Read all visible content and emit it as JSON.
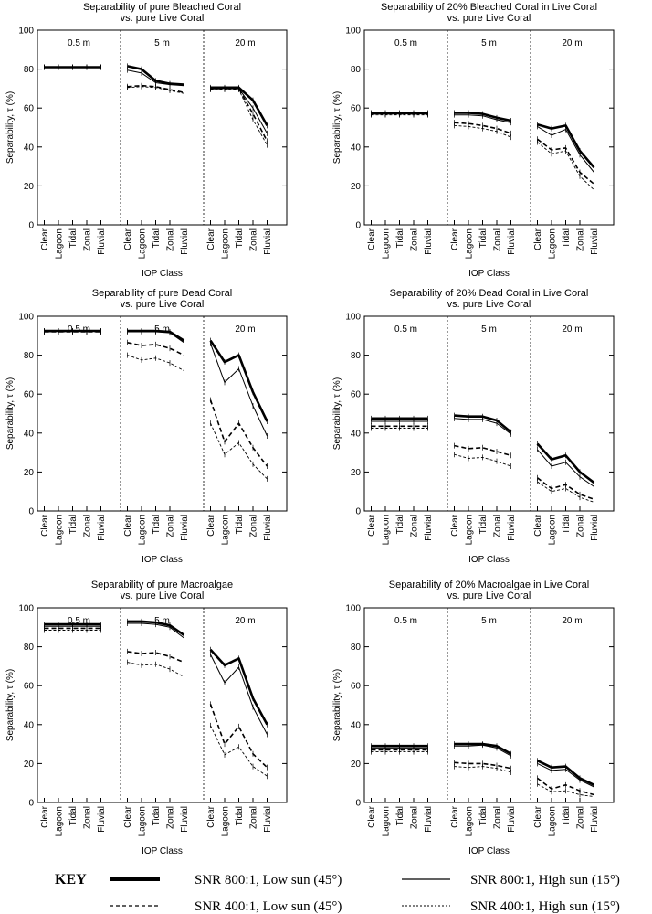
{
  "x_label": "IOP Class",
  "y_label": "Separability, τ (%)",
  "categories": [
    "Clear",
    "Lagoon",
    "Tidal",
    "Zonal",
    "Fluvial"
  ],
  "segments": [
    "0.5 m",
    "5 m",
    "20 m"
  ],
  "y_ticks": [
    "0",
    "20",
    "40",
    "60",
    "80",
    "100"
  ],
  "ylim": [
    0,
    100
  ],
  "key": {
    "title": "KEY",
    "entries": [
      {
        "id": "s1",
        "label": "SNR 800:1, Low sun (45°)"
      },
      {
        "id": "s2",
        "label": "SNR 800:1, High sun (15°)"
      },
      {
        "id": "s3",
        "label": "SNR 400:1, Low sun (45°)"
      },
      {
        "id": "s4",
        "label": "SNR 400:1, High sun (15°)"
      }
    ]
  },
  "chart_data": [
    {
      "type": "line",
      "title": [
        "Separability of pure Bleached Coral",
        "vs. pure Live Coral"
      ],
      "xlabel": "IOP Class",
      "ylabel": "Separability, τ (%)",
      "ylim": [
        0,
        100
      ],
      "segments": [
        {
          "name": "0.5 m",
          "series": [
            [
              81,
              81,
              81,
              81,
              81
            ],
            [
              81,
              81,
              81,
              81,
              81
            ],
            [
              81,
              81,
              81,
              81,
              81
            ],
            [
              81,
              81,
              81,
              81,
              81
            ]
          ]
        },
        {
          "name": "5 m",
          "series": [
            [
              81.5,
              80,
              74,
              72.5,
              72
            ],
            [
              79.5,
              78,
              73,
              72,
              71.5
            ],
            [
              71,
              71.5,
              71,
              69.5,
              68
            ],
            [
              70.5,
              71,
              70.5,
              69,
              67.5
            ]
          ]
        },
        {
          "name": "20 m",
          "series": [
            [
              70.5,
              70.5,
              70.5,
              64,
              51
            ],
            [
              70,
              70,
              70,
              60,
              47
            ],
            [
              70,
              70,
              70,
              57,
              43
            ],
            [
              69.5,
              69.5,
              69.5,
              54,
              41
            ]
          ]
        }
      ]
    },
    {
      "type": "line",
      "title": [
        "Separability of 20% Bleached Coral in Live Coral",
        "vs. pure Live Coral"
      ],
      "xlabel": "IOP Class",
      "ylabel": "Separability, τ (%)",
      "ylim": [
        0,
        100
      ],
      "segments": [
        {
          "name": "0.5 m",
          "series": [
            [
              57.5,
              57.5,
              57.5,
              57.5,
              57.5
            ],
            [
              57,
              57,
              57,
              57,
              57
            ],
            [
              57,
              57,
              57,
              57,
              57
            ],
            [
              56.5,
              56.5,
              56.5,
              56.5,
              56.5
            ]
          ]
        },
        {
          "name": "5 m",
          "series": [
            [
              57.5,
              57.5,
              57,
              55,
              53.5
            ],
            [
              56.5,
              56.5,
              56,
              54,
              52.5
            ],
            [
              52.5,
              52,
              51,
              49.5,
              47
            ],
            [
              51,
              50.5,
              49.5,
              48,
              45
            ]
          ]
        },
        {
          "name": "20 m",
          "series": [
            [
              51.5,
              49.5,
              51,
              38,
              29.5
            ],
            [
              50.5,
              46,
              49,
              36,
              27
            ],
            [
              44,
              38.5,
              39.5,
              27,
              21
            ],
            [
              42.5,
              36.5,
              38,
              25,
              18
            ]
          ]
        }
      ]
    },
    {
      "type": "line",
      "title": [
        "Separability of pure Dead Coral",
        "vs. pure Live Coral"
      ],
      "xlabel": "IOP Class",
      "ylabel": "Separability, τ (%)",
      "ylim": [
        0,
        100
      ],
      "segments": [
        {
          "name": "0.5 m",
          "series": [
            [
              92.5,
              92.5,
              92.5,
              92.5,
              92.5
            ],
            [
              92.5,
              92.5,
              92.5,
              92.5,
              92.5
            ],
            [
              92,
              92,
              92,
              92,
              92
            ],
            [
              92,
              92,
              92,
              92,
              92
            ]
          ]
        },
        {
          "name": "5 m",
          "series": [
            [
              92.5,
              92.5,
              92.5,
              92,
              87.5
            ],
            [
              92,
              92,
              92,
              91.5,
              86.5
            ],
            [
              86.5,
              85,
              85.5,
              83.5,
              80
            ],
            [
              80,
              77.5,
              78.5,
              76,
              72
            ]
          ]
        },
        {
          "name": "20 m",
          "series": [
            [
              87.5,
              76.5,
              80,
              61,
              46
            ],
            [
              86,
              66,
              73,
              54,
              38.5
            ],
            [
              57,
              35.5,
              45,
              32.5,
              23
            ],
            [
              45,
              29,
              35,
              24,
              16.5
            ]
          ]
        }
      ]
    },
    {
      "type": "line",
      "title": [
        "Separability of 20% Dead Coral in Live Coral",
        "vs. pure Live Coral"
      ],
      "xlabel": "IOP Class",
      "ylabel": "Separability, τ (%)",
      "ylim": [
        0,
        100
      ],
      "segments": [
        {
          "name": "0.5 m",
          "series": [
            [
              47.5,
              47.5,
              47.5,
              47.5,
              47.5
            ],
            [
              46,
              46,
              46,
              46,
              46
            ],
            [
              43.5,
              43.5,
              43.5,
              43.5,
              43.5
            ],
            [
              42.5,
              42.5,
              42.5,
              42.5,
              42.5
            ]
          ]
        },
        {
          "name": "5 m",
          "series": [
            [
              49,
              48.5,
              48.5,
              46.5,
              40.5
            ],
            [
              47.5,
              47,
              47,
              45,
              39.5
            ],
            [
              33.5,
              32,
              32.5,
              30.5,
              28.5
            ],
            [
              29,
              27,
              27.5,
              25.5,
              23
            ]
          ]
        },
        {
          "name": "20 m",
          "series": [
            [
              34.5,
              26.5,
              28.5,
              20,
              14.5
            ],
            [
              31.5,
              23,
              25,
              17.5,
              12.5
            ],
            [
              17,
              11.5,
              13.5,
              8.5,
              6
            ],
            [
              15,
              10,
              11.5,
              7,
              4.5
            ]
          ]
        }
      ]
    },
    {
      "type": "line",
      "title": [
        "Separability of pure Macroalgae",
        "vs. pure Live Coral"
      ],
      "xlabel": "IOP Class",
      "ylabel": "Separability, τ (%)",
      "ylim": [
        0,
        100
      ],
      "segments": [
        {
          "name": "0.5 m",
          "series": [
            [
              91.5,
              91.5,
              91.5,
              91.5,
              91.5
            ],
            [
              90.5,
              90.5,
              90.5,
              90.5,
              90.5
            ],
            [
              89.5,
              89.5,
              89.5,
              89.5,
              89.5
            ],
            [
              88.5,
              88.5,
              88.5,
              88.5,
              88.5
            ]
          ]
        },
        {
          "name": "5 m",
          "series": [
            [
              93,
              93,
              92.5,
              91,
              86
            ],
            [
              92,
              92,
              91.5,
              90,
              84.5
            ],
            [
              77.5,
              76.5,
              77,
              75,
              72
            ],
            [
              72,
              70.5,
              71,
              68.5,
              64.5
            ]
          ]
        },
        {
          "name": "20 m",
          "series": [
            [
              78.5,
              70.5,
              74,
              53.5,
              40
            ],
            [
              76,
              61.5,
              69.5,
              49,
              35
            ],
            [
              50.5,
              30,
              39,
              25,
              18
            ],
            [
              39.5,
              24.5,
              28.5,
              18.5,
              13.5
            ]
          ]
        }
      ]
    },
    {
      "type": "line",
      "title": [
        "Separability of 20% Macroalgae in Live Coral",
        "vs. pure Live Coral"
      ],
      "xlabel": "IOP Class",
      "ylabel": "Separability, τ (%)",
      "ylim": [
        0,
        100
      ],
      "segments": [
        {
          "name": "0.5 m",
          "series": [
            [
              29,
              29,
              29,
              29,
              29
            ],
            [
              28,
              28,
              28,
              28,
              28
            ],
            [
              27,
              27,
              27,
              27,
              27
            ],
            [
              26,
              26,
              26,
              26,
              26
            ]
          ]
        },
        {
          "name": "5 m",
          "series": [
            [
              30,
              30,
              30,
              29,
              25
            ],
            [
              29,
              29,
              29.5,
              28,
              24
            ],
            [
              20.5,
              20,
              20,
              19,
              17.5
            ],
            [
              18.5,
              18,
              18.5,
              17.5,
              15.5
            ]
          ]
        },
        {
          "name": "20 m",
          "series": [
            [
              21.5,
              18,
              18.5,
              12.5,
              9
            ],
            [
              20,
              16.5,
              17,
              11.5,
              8
            ],
            [
              12.5,
              7,
              9,
              6,
              4
            ],
            [
              9.5,
              5.5,
              6,
              4,
              3
            ]
          ]
        }
      ]
    }
  ]
}
